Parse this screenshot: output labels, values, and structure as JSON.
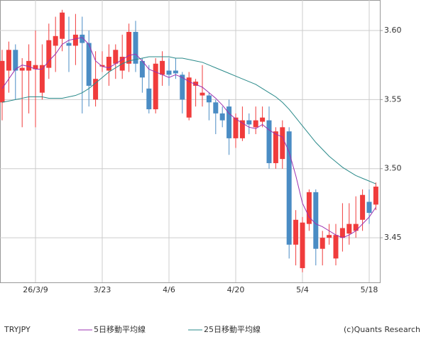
{
  "chart_data": {
    "type": "candlestick",
    "title": "TRYJPY",
    "credit": "(c)Quants Research",
    "categories": [
      null,
      null,
      null,
      null,
      null,
      "26/3/9",
      null,
      null,
      null,
      null,
      null,
      null,
      null,
      null,
      null,
      "3/23",
      null,
      null,
      null,
      null,
      null,
      null,
      null,
      null,
      null,
      "4/6",
      null,
      null,
      null,
      null,
      null,
      null,
      null,
      null,
      null,
      "4/20",
      null,
      null,
      null,
      null,
      null,
      null,
      null,
      null,
      null,
      "5/4",
      null,
      null,
      null,
      null,
      null,
      null,
      null,
      null,
      null,
      "5/18",
      null
    ],
    "open": [
      3.548,
      3.571,
      3.586,
      3.571,
      3.571,
      3.572,
      3.555,
      3.573,
      3.589,
      3.594,
      3.591,
      3.589,
      3.597,
      3.591,
      3.55,
      3.574,
      3.571,
      3.576,
      3.571,
      3.576,
      3.599,
      3.578,
      3.558,
      3.543,
      3.568,
      3.571,
      3.571,
      3.568,
      3.537,
      3.56,
      3.553,
      3.553,
      3.548,
      3.54,
      3.545,
      3.522,
      3.522,
      3.535,
      3.53,
      3.534,
      3.535,
      3.504,
      3.507,
      3.527,
      3.445,
      3.428,
      3.46,
      3.483,
      3.442,
      3.45,
      3.435,
      3.45,
      3.453,
      3.455,
      3.463,
      3.476,
      3.474
    ],
    "high": [
      3.586,
      3.592,
      3.59,
      3.58,
      3.59,
      3.6,
      3.59,
      3.605,
      3.61,
      3.615,
      3.61,
      3.612,
      3.61,
      3.6,
      3.585,
      3.585,
      3.59,
      3.59,
      3.597,
      3.605,
      3.607,
      3.58,
      3.575,
      3.58,
      3.585,
      3.58,
      3.58,
      3.57,
      3.57,
      3.565,
      3.575,
      3.555,
      3.55,
      3.545,
      3.55,
      3.54,
      3.545,
      3.54,
      3.545,
      3.545,
      3.545,
      3.53,
      3.535,
      3.53,
      3.47,
      3.465,
      3.485,
      3.485,
      3.455,
      3.46,
      3.46,
      3.475,
      3.475,
      3.48,
      3.485,
      3.485,
      3.49
    ],
    "low": [
      3.535,
      3.555,
      3.55,
      3.53,
      3.54,
      3.53,
      3.55,
      3.565,
      3.57,
      3.585,
      3.57,
      3.575,
      3.54,
      3.545,
      3.545,
      3.57,
      3.56,
      3.565,
      3.565,
      3.57,
      3.57,
      3.555,
      3.54,
      3.54,
      3.56,
      3.56,
      3.565,
      3.54,
      3.535,
      3.545,
      3.545,
      3.535,
      3.525,
      3.53,
      3.51,
      3.515,
      3.52,
      3.525,
      3.525,
      3.53,
      3.5,
      3.5,
      3.5,
      3.435,
      3.43,
      3.425,
      3.455,
      3.43,
      3.43,
      3.445,
      3.43,
      3.44,
      3.445,
      3.45,
      3.455,
      3.46,
      3.47
    ],
    "close": [
      3.578,
      3.586,
      3.571,
      3.573,
      3.578,
      3.575,
      3.575,
      3.593,
      3.596,
      3.613,
      3.589,
      3.597,
      3.591,
      3.56,
      3.565,
      3.575,
      3.581,
      3.586,
      3.581,
      3.599,
      3.576,
      3.566,
      3.543,
      3.576,
      3.578,
      3.568,
      3.569,
      3.55,
      3.566,
      3.563,
      3.555,
      3.548,
      3.54,
      3.535,
      3.522,
      3.537,
      3.535,
      3.532,
      3.535,
      3.537,
      3.504,
      3.527,
      3.53,
      3.445,
      3.463,
      3.461,
      3.483,
      3.442,
      3.45,
      3.452,
      3.452,
      3.457,
      3.46,
      3.46,
      3.481,
      3.468,
      3.487
    ],
    "up_color": "#f03c3c",
    "down_color": "#4a8cc4",
    "series": [
      {
        "name": "5日移動平均線",
        "color": "#9b30b0",
        "values": [
          3.558,
          3.565,
          3.572,
          3.575,
          3.574,
          3.572,
          3.572,
          3.578,
          3.583,
          3.59,
          3.593,
          3.594,
          3.595,
          3.59,
          3.578,
          3.574,
          3.573,
          3.576,
          3.579,
          3.582,
          3.583,
          3.578,
          3.572,
          3.57,
          3.568,
          3.566,
          3.568,
          3.566,
          3.563,
          3.561,
          3.559,
          3.555,
          3.551,
          3.546,
          3.54,
          3.536,
          3.533,
          3.53,
          3.529,
          3.532,
          3.528,
          3.525,
          3.523,
          3.512,
          3.495,
          3.475,
          3.465,
          3.46,
          3.458,
          3.455,
          3.452,
          3.45,
          3.452,
          3.455,
          3.46,
          3.465,
          3.472
        ]
      },
      {
        "name": "25日移動平均線",
        "color": "#2a8a8a",
        "values": [
          3.548,
          3.549,
          3.55,
          3.551,
          3.552,
          3.552,
          3.552,
          3.551,
          3.551,
          3.551,
          3.552,
          3.553,
          3.555,
          3.558,
          3.562,
          3.566,
          3.57,
          3.573,
          3.576,
          3.578,
          3.579,
          3.58,
          3.581,
          3.581,
          3.581,
          3.581,
          3.58,
          3.58,
          3.579,
          3.578,
          3.577,
          3.575,
          3.573,
          3.571,
          3.569,
          3.567,
          3.565,
          3.563,
          3.561,
          3.558,
          3.555,
          3.552,
          3.548,
          3.543,
          3.537,
          3.531,
          3.525,
          3.519,
          3.514,
          3.509,
          3.505,
          3.501,
          3.498,
          3.495,
          3.493,
          3.491,
          3.489
        ]
      }
    ],
    "ylim": [
      3.4177,
      3.6221
    ],
    "yticks": [
      3.45,
      {
        "value": 3.5,
        "label": "3.50"
      },
      3.55,
      {
        "value": 3.6,
        "label": "3.60"
      }
    ],
    "grid": true
  }
}
